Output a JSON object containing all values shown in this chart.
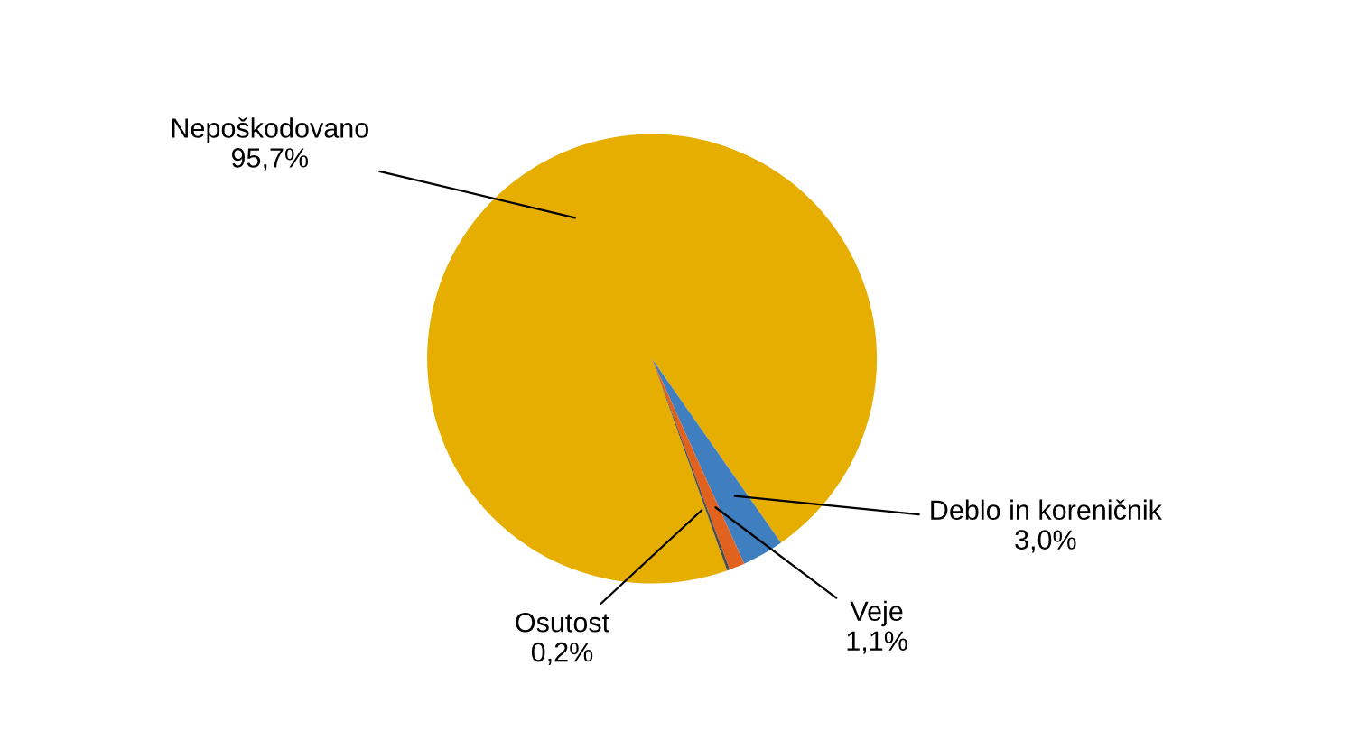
{
  "chart_data": {
    "type": "pie",
    "categories": [
      "Nepoškodovano",
      "Deblo in koreničnik",
      "Veje",
      "Osutost"
    ],
    "values": [
      95.7,
      3.0,
      1.1,
      0.2
    ],
    "value_labels": [
      "95,7%",
      "3,0%",
      "1,1%",
      "0,2%"
    ],
    "colors": [
      "#e6ae00",
      "#3f7fc0",
      "#e0621e",
      "#4d4d4d"
    ],
    "legend": false
  }
}
